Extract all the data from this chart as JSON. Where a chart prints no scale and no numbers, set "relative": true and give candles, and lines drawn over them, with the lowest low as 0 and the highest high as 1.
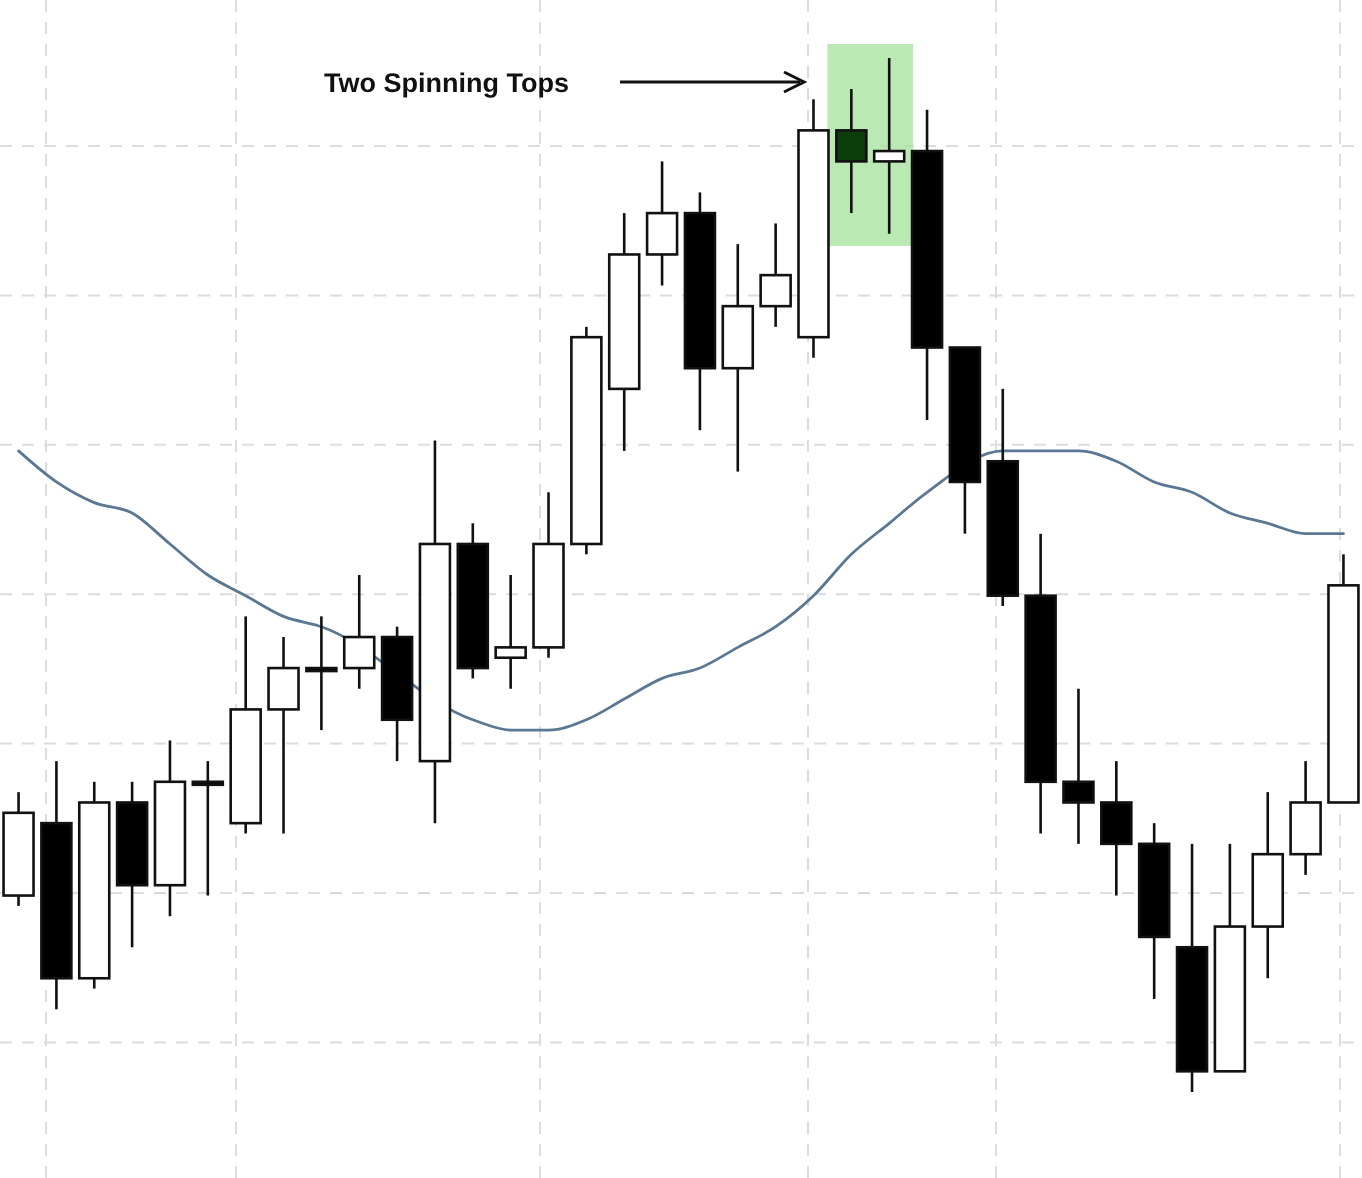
{
  "chart_data": {
    "type": "candlestick",
    "relative": true,
    "grid": true,
    "categories": [
      null,
      null,
      null,
      null,
      null,
      null,
      null,
      null,
      null,
      null,
      null,
      null,
      null,
      null,
      null,
      null,
      null,
      null,
      null,
      null,
      null,
      null,
      null,
      null,
      null,
      null,
      null,
      null,
      null,
      null,
      null,
      null,
      null,
      null,
      null,
      null
    ],
    "ohlc": [
      [
        0.19,
        0.29,
        0.18,
        0.27
      ],
      [
        0.26,
        0.32,
        0.08,
        0.11
      ],
      [
        0.11,
        0.3,
        0.1,
        0.28
      ],
      [
        0.28,
        0.3,
        0.14,
        0.2
      ],
      [
        0.2,
        0.34,
        0.17,
        0.3
      ],
      [
        0.3,
        0.32,
        0.19,
        0.3
      ],
      [
        0.26,
        0.46,
        0.25,
        0.37
      ],
      [
        0.37,
        0.44,
        0.25,
        0.41
      ],
      [
        0.41,
        0.46,
        0.35,
        0.41
      ],
      [
        0.41,
        0.5,
        0.39,
        0.44
      ],
      [
        0.44,
        0.45,
        0.32,
        0.36
      ],
      [
        0.32,
        0.63,
        0.26,
        0.53
      ],
      [
        0.53,
        0.55,
        0.4,
        0.41
      ],
      [
        0.42,
        0.5,
        0.39,
        0.43
      ],
      [
        0.43,
        0.58,
        0.42,
        0.53
      ],
      [
        0.53,
        0.74,
        0.52,
        0.73
      ],
      [
        0.68,
        0.85,
        0.62,
        0.81
      ],
      [
        0.81,
        0.9,
        0.78,
        0.85
      ],
      [
        0.85,
        0.87,
        0.64,
        0.7
      ],
      [
        0.7,
        0.82,
        0.6,
        0.76
      ],
      [
        0.76,
        0.84,
        0.74,
        0.79
      ],
      [
        0.73,
        0.96,
        0.71,
        0.93
      ],
      [
        0.93,
        0.97,
        0.85,
        0.9
      ],
      [
        0.9,
        1,
        0.83,
        0.91
      ],
      [
        0.91,
        0.95,
        0.65,
        0.72
      ],
      [
        0.72,
        0.72,
        0.54,
        0.59
      ],
      [
        0.61,
        0.68,
        0.47,
        0.48
      ],
      [
        0.48,
        0.54,
        0.25,
        0.3
      ],
      [
        0.3,
        0.39,
        0.24,
        0.28
      ],
      [
        0.28,
        0.32,
        0.19,
        0.24
      ],
      [
        0.24,
        0.26,
        0.09,
        0.15
      ],
      [
        0.14,
        0.24,
        0,
        0.02
      ],
      [
        0.02,
        0.24,
        0.02,
        0.16
      ],
      [
        0.16,
        0.29,
        0.11,
        0.23
      ],
      [
        0.23,
        0.32,
        0.21,
        0.28
      ],
      [
        0.28,
        0.52,
        0.28,
        0.49
      ]
    ],
    "colors": [
      "#ffffff",
      "#000000",
      "#ffffff",
      "#000000",
      "#ffffff",
      "#000000",
      "#ffffff",
      "#ffffff",
      "#000000",
      "#ffffff",
      "#000000",
      "#ffffff",
      "#000000",
      "#ffffff",
      "#ffffff",
      "#ffffff",
      "#ffffff",
      "#ffffff",
      "#000000",
      "#ffffff",
      "#ffffff",
      "#ffffff",
      "#0a3d0a",
      "#ffffff",
      "#000000",
      "#000000",
      "#000000",
      "#000000",
      "#000000",
      "#000000",
      "#000000",
      "#000000",
      "#ffffff",
      "#ffffff",
      "#ffffff",
      "#ffffff"
    ],
    "series": [
      {
        "type": "line",
        "color": "#5a7894",
        "values": [
          0.62,
          0.59,
          0.57,
          0.56,
          0.53,
          0.5,
          0.48,
          0.46,
          0.45,
          null,
          null,
          null,
          0.36,
          0.35,
          0.35,
          0.36,
          0.38,
          0.4,
          0.41,
          0.43,
          0.45,
          0.48,
          0.52,
          0.55,
          0.58,
          null,
          0.62,
          0.62,
          0.62,
          0.61,
          0.59,
          0.58,
          0.56,
          0.55,
          0.54,
          0.54
        ]
      }
    ],
    "annotations": [
      "Two Spinning Tops"
    ]
  }
}
